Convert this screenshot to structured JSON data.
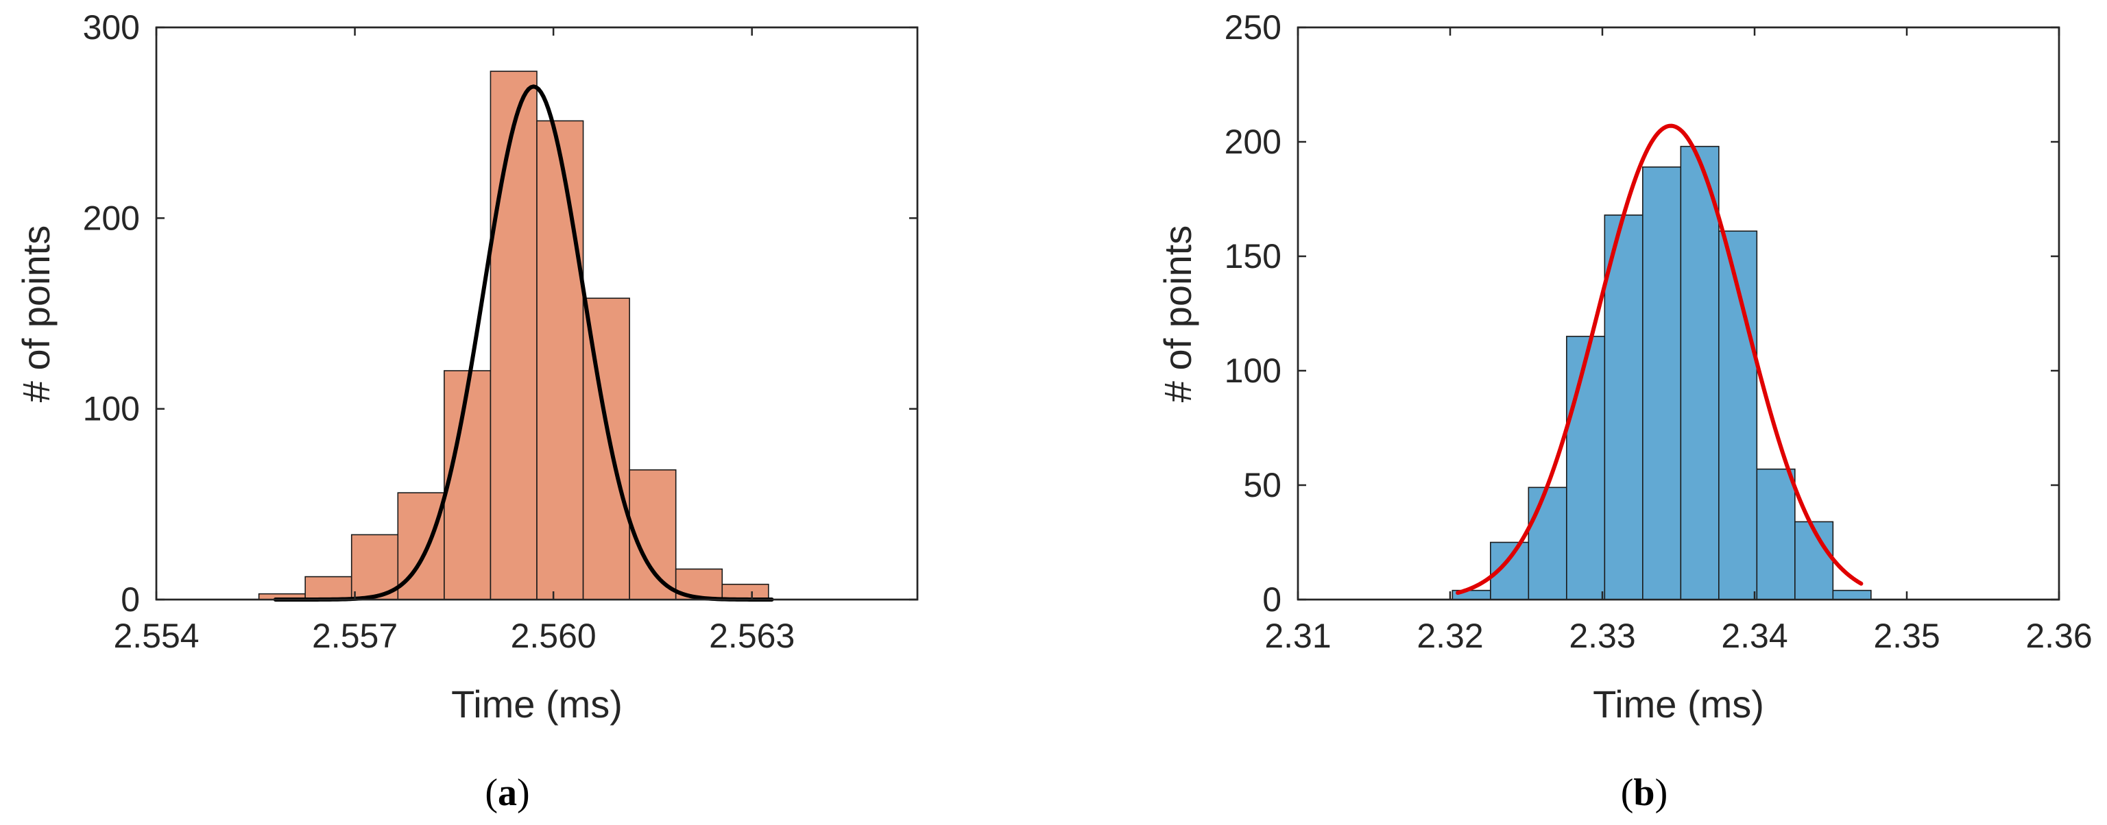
{
  "figure": {
    "panels": [
      {
        "label_open": "(",
        "label_letter": "a",
        "label_close": ")"
      },
      {
        "label_open": "(",
        "label_letter": "b",
        "label_close": ")"
      }
    ]
  },
  "chart_data": [
    {
      "type": "bar",
      "subtype": "histogram",
      "title": "",
      "xlabel": "Time (ms)",
      "ylabel": "# of points",
      "xlim": [
        2.554,
        2.5655
      ],
      "ylim": [
        0,
        300
      ],
      "xticks": [
        2.554,
        2.557,
        2.56,
        2.563
      ],
      "xtick_labels": [
        "2.554",
        "2.557",
        "2.560",
        "2.563"
      ],
      "yticks": [
        0,
        100,
        200,
        300
      ],
      "ytick_labels": [
        "0",
        "100",
        "200",
        "300"
      ],
      "grid": false,
      "bar_color": "#e8997a",
      "edge_color": "#1a1a1a",
      "curve_color": "#000000",
      "bin_width": 0.0007,
      "bin_centers": [
        2.5559,
        2.5566,
        2.5573,
        2.558,
        2.5587,
        2.5594,
        2.5601,
        2.5608,
        2.5615,
        2.5622,
        2.5629
      ],
      "values": [
        3,
        12,
        34,
        56,
        120,
        277,
        251,
        158,
        68,
        16,
        8
      ],
      "fit_curve": {
        "type": "gaussian",
        "peak": 269,
        "mean": 2.5597,
        "sigma": 0.00075,
        "x_range": [
          2.5558,
          2.5633
        ]
      }
    },
    {
      "type": "bar",
      "subtype": "histogram",
      "title": "",
      "xlabel": "Time (ms)",
      "ylabel": "# of points",
      "xlim": [
        2.31,
        2.36
      ],
      "ylim": [
        0,
        250
      ],
      "xticks": [
        2.31,
        2.32,
        2.33,
        2.34,
        2.35,
        2.36
      ],
      "xtick_labels": [
        "2.31",
        "2.32",
        "2.33",
        "2.34",
        "2.35",
        "2.36"
      ],
      "yticks": [
        0,
        50,
        100,
        150,
        200,
        250
      ],
      "ytick_labels": [
        "0",
        "50",
        "100",
        "150",
        "200",
        "250"
      ],
      "grid": false,
      "bar_color": "#62a9d3",
      "edge_color": "#1a1a1a",
      "curve_color": "#e00000",
      "bin_width": 0.0025,
      "bin_centers": [
        2.3214,
        2.3239,
        2.3264,
        2.3289,
        2.3314,
        2.3339,
        2.3364,
        2.3389,
        2.3414,
        2.3439,
        2.3464
      ],
      "values": [
        4,
        25,
        49,
        115,
        168,
        189,
        198,
        161,
        57,
        34,
        4
      ],
      "fit_curve": {
        "type": "gaussian",
        "peak": 207,
        "mean": 2.3345,
        "sigma": 0.0048,
        "x_range": [
          2.3205,
          2.347
        ]
      }
    }
  ]
}
